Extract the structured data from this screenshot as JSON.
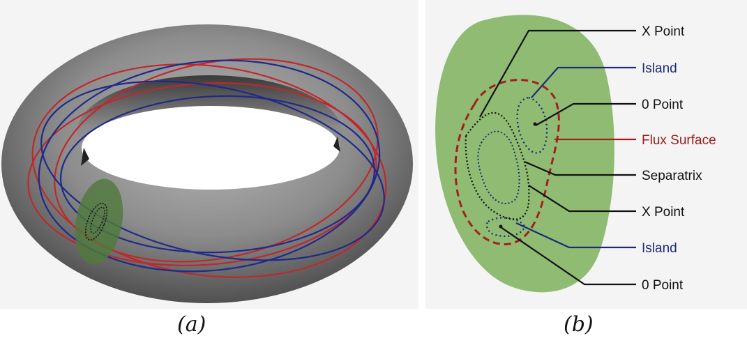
{
  "panel_a": {
    "caption": "(a)"
  },
  "panel_b": {
    "caption": "(b)",
    "labels": [
      {
        "text": "X Point",
        "color": "#111111"
      },
      {
        "text": "Island",
        "color": "#1c2a78"
      },
      {
        "text": "0 Point",
        "color": "#111111"
      },
      {
        "text": "Flux Surface",
        "color": "#9b1a14"
      },
      {
        "text": "Separatrix",
        "color": "#111111"
      },
      {
        "text": "X Point",
        "color": "#111111"
      },
      {
        "text": "Island",
        "color": "#1c2a78"
      },
      {
        "text": "0 Point",
        "color": "#111111"
      }
    ]
  },
  "colors": {
    "torus": "#8a8a8a",
    "poincare_section": "#8fbc72",
    "flux_surface": "#b22222",
    "field_line": "#1a237e",
    "background_panel_a": "#f4f4f4"
  }
}
